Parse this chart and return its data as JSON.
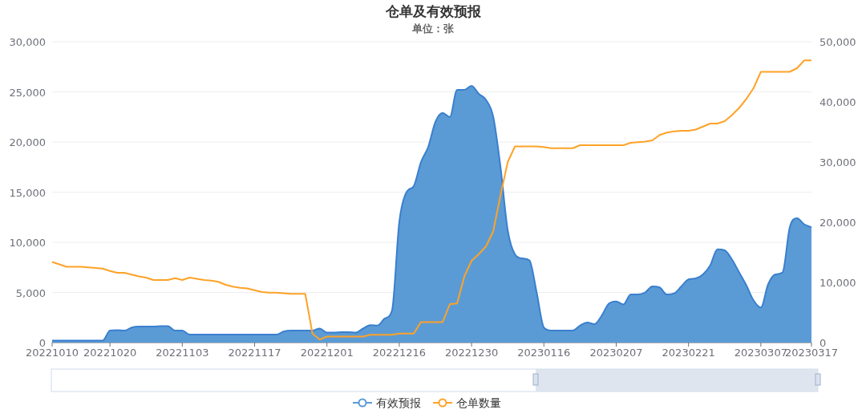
{
  "chart_data": {
    "type": "area",
    "title": "仓单及有效预报",
    "subtitle": "单位：张",
    "categories": [
      "20221010",
      null,
      null,
      null,
      null,
      null,
      null,
      null,
      "20221020",
      null,
      null,
      null,
      null,
      null,
      null,
      null,
      null,
      null,
      "20221103",
      null,
      null,
      null,
      null,
      null,
      null,
      null,
      null,
      null,
      "20221117",
      null,
      null,
      null,
      null,
      null,
      null,
      null,
      null,
      null,
      "20221201",
      null,
      null,
      null,
      null,
      null,
      null,
      null,
      null,
      null,
      "20221216",
      null,
      null,
      null,
      null,
      null,
      null,
      null,
      null,
      null,
      "20221230",
      null,
      null,
      null,
      null,
      null,
      null,
      null,
      null,
      null,
      "20230116",
      null,
      null,
      null,
      null,
      null,
      null,
      null,
      null,
      null,
      "20230207",
      null,
      null,
      null,
      null,
      null,
      null,
      null,
      null,
      null,
      "20230221",
      null,
      null,
      null,
      null,
      null,
      null,
      null,
      null,
      null,
      "20230307",
      null,
      null,
      null,
      null,
      null,
      null,
      "20230317"
    ],
    "series": [
      {
        "name": "有效预报",
        "color": "#5b9bd5",
        "values": [
          200,
          200,
          200,
          200,
          200,
          200,
          200,
          200,
          1200,
          1250,
          1200,
          1500,
          1600,
          1600,
          1600,
          1650,
          1650,
          1200,
          1200,
          800,
          800,
          800,
          800,
          800,
          800,
          800,
          800,
          800,
          800,
          800,
          800,
          800,
          1100,
          1200,
          1200,
          1200,
          1200,
          1400,
          1000,
          1000,
          1050,
          1050,
          1000,
          1400,
          1750,
          1700,
          2400,
          3200,
          12000,
          15000,
          15600,
          18000,
          19500,
          22000,
          22900,
          22500,
          25200,
          25200,
          25600,
          24800,
          24200,
          22500,
          17500,
          11200,
          8800,
          8400,
          8200,
          5000,
          1500,
          1200,
          1200,
          1200,
          1200,
          1700,
          2000,
          1850,
          2700,
          3900,
          4100,
          3800,
          4800,
          4800,
          5000,
          5600,
          5500,
          4800,
          4900,
          5600,
          6300,
          6400,
          6800,
          7700,
          9300,
          9200,
          8300,
          7000,
          5700,
          4200,
          3500,
          5800,
          6800,
          7000,
          11500,
          12400,
          11800,
          11500
        ]
      },
      {
        "name": "仓单数量",
        "type": "line",
        "axis": "y2",
        "color": "#ffa227",
        "values": [
          13400,
          13000,
          12600,
          12600,
          12600,
          12500,
          12400,
          12300,
          11900,
          11600,
          11600,
          11300,
          11000,
          10800,
          10400,
          10400,
          10400,
          10700,
          10400,
          10800,
          10600,
          10400,
          10300,
          10100,
          9600,
          9300,
          9100,
          9000,
          8700,
          8400,
          8300,
          8300,
          8200,
          8100,
          8100,
          8100,
          1500,
          500,
          1000,
          1000,
          1000,
          1000,
          1000,
          1000,
          1300,
          1300,
          1300,
          1300,
          1500,
          1500,
          1500,
          3400,
          3400,
          3400,
          3400,
          6400,
          6500,
          11000,
          13600,
          14700,
          16000,
          18500,
          24500,
          30000,
          32600,
          32600,
          32600,
          32600,
          32500,
          32300,
          32300,
          32300,
          32300,
          32800,
          32800,
          32800,
          32800,
          32800,
          32800,
          32800,
          33200,
          33300,
          33400,
          33600,
          34500,
          34900,
          35100,
          35200,
          35200,
          35400,
          35900,
          36400,
          36400,
          36800,
          37800,
          39000,
          40500,
          42300,
          45000,
          45000,
          45000,
          45000,
          45000,
          45600,
          46900,
          46900
        ]
      }
    ],
    "ylim": [
      0,
      30000
    ],
    "yticks": [
      0,
      {
        "value": 5000,
        "label": "5,000"
      },
      {
        "value": 10000,
        "label": "10,000"
      },
      {
        "value": 15000,
        "label": "15,000"
      },
      {
        "value": 20000,
        "label": "20,000"
      },
      {
        "value": 25000,
        "label": "25,000"
      },
      {
        "value": 30000,
        "label": "30,000"
      }
    ],
    "y2lim": [
      0,
      50000
    ],
    "y2ticks": [
      0,
      {
        "value": 10000,
        "label": "10,000"
      },
      {
        "value": 20000,
        "label": "20,000"
      },
      {
        "value": 30000,
        "label": "30,000"
      },
      {
        "value": 40000,
        "label": "40,000"
      },
      {
        "value": 50000,
        "label": "50,000"
      }
    ],
    "grid": "y",
    "legend": "bottom",
    "marker": "none",
    "line_style": "solid"
  }
}
